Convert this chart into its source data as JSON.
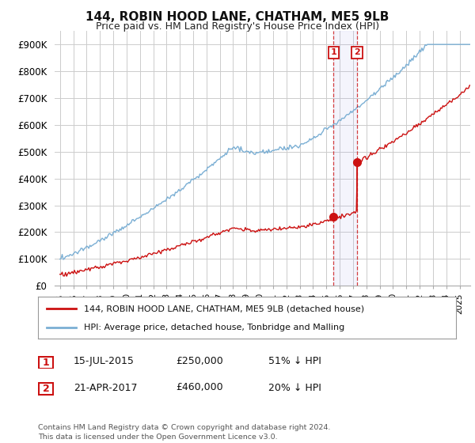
{
  "title": "144, ROBIN HOOD LANE, CHATHAM, ME5 9LB",
  "subtitle": "Price paid vs. HM Land Registry's House Price Index (HPI)",
  "ylim": [
    0,
    950000
  ],
  "yticks": [
    0,
    100000,
    200000,
    300000,
    400000,
    500000,
    600000,
    700000,
    800000,
    900000
  ],
  "ytick_labels": [
    "£0",
    "£100K",
    "£200K",
    "£300K",
    "£400K",
    "£500K",
    "£600K",
    "£700K",
    "£800K",
    "£900K"
  ],
  "background_color": "#ffffff",
  "grid_color": "#cccccc",
  "hpi_color": "#7bafd4",
  "price_color": "#cc1111",
  "legend_label_price": "144, ROBIN HOOD LANE, CHATHAM, ME5 9LB (detached house)",
  "legend_label_hpi": "HPI: Average price, detached house, Tonbridge and Malling",
  "sale1_year": 2015.54,
  "sale1_price": 250000,
  "sale1_date_str": "15-JUL-2015",
  "sale1_pct": "51% ↓ HPI",
  "sale2_year": 2017.3,
  "sale2_price": 460000,
  "sale2_date_str": "21-APR-2017",
  "sale2_pct": "20% ↓ HPI",
  "footnote": "Contains HM Land Registry data © Crown copyright and database right 2024.\nThis data is licensed under the Open Government Licence v3.0.",
  "xlim_left": 1994.6,
  "xlim_right": 2025.8
}
